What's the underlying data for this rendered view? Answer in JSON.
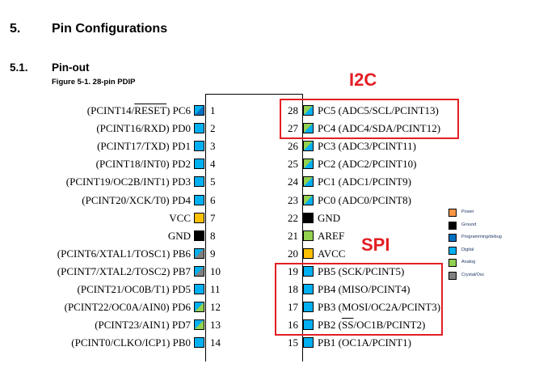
{
  "section": {
    "number": "5.",
    "title": "Pin Configurations"
  },
  "subsection": {
    "number": "5.1.",
    "title": "Pin-out"
  },
  "figure_caption": "Figure 5-1.  28-pin PDIP",
  "colors": {
    "power": "#ffc000",
    "power_legend": "#f79646",
    "ground": "#000000",
    "programming": "#0070c0",
    "digital": "#00b0f0",
    "analog": "#92d050",
    "crystal": "#7f7f7f",
    "highlight": "#e31e24"
  },
  "left_pins": [
    {
      "num": "1",
      "parts": [
        "(PCINT14/",
        "RESET",
        ") PC6"
      ],
      "type": [
        "digital",
        "programming"
      ]
    },
    {
      "num": "2",
      "parts": [
        "(PCINT16/RXD) PD0"
      ],
      "type": [
        "digital"
      ]
    },
    {
      "num": "3",
      "parts": [
        "(PCINT17/TXD) PD1"
      ],
      "type": [
        "digital"
      ]
    },
    {
      "num": "4",
      "parts": [
        "(PCINT18/INT0) PD2"
      ],
      "type": [
        "digital"
      ]
    },
    {
      "num": "5",
      "parts": [
        "(PCINT19/OC2B/INT1) PD3"
      ],
      "type": [
        "digital"
      ]
    },
    {
      "num": "6",
      "parts": [
        "(PCINT20/XCK/T0) PD4"
      ],
      "type": [
        "digital"
      ]
    },
    {
      "num": "7",
      "parts": [
        "VCC"
      ],
      "type": [
        "power"
      ]
    },
    {
      "num": "8",
      "parts": [
        "GND"
      ],
      "type": [
        "ground"
      ]
    },
    {
      "num": "9",
      "parts": [
        "(PCINT6/XTAL1/TOSC1) PB6"
      ],
      "type": [
        "digital",
        "crystal"
      ]
    },
    {
      "num": "10",
      "parts": [
        "(PCINT7/XTAL2/TOSC2) PB7"
      ],
      "type": [
        "digital",
        "crystal"
      ]
    },
    {
      "num": "11",
      "parts": [
        "(PCINT21/OC0B/T1) PD5"
      ],
      "type": [
        "digital"
      ]
    },
    {
      "num": "12",
      "parts": [
        "(PCINT22/OC0A/AIN0) PD6"
      ],
      "type": [
        "digital",
        "analog"
      ]
    },
    {
      "num": "13",
      "parts": [
        "(PCINT23/AIN1) PD7"
      ],
      "type": [
        "digital",
        "analog"
      ]
    },
    {
      "num": "14",
      "parts": [
        "(PCINT0/CLKO/ICP1) PB0"
      ],
      "type": [
        "digital"
      ]
    }
  ],
  "right_pins": [
    {
      "num": "28",
      "parts": [
        "PC5 (ADC5/SCL/PCINT13)"
      ],
      "type": [
        "analog",
        "digital"
      ]
    },
    {
      "num": "27",
      "parts": [
        "PC4 (ADC4/SDA/PCINT12)"
      ],
      "type": [
        "analog",
        "digital"
      ]
    },
    {
      "num": "26",
      "parts": [
        "PC3 (ADC3/PCINT11)"
      ],
      "type": [
        "analog",
        "digital"
      ]
    },
    {
      "num": "25",
      "parts": [
        "PC2 (ADC2/PCINT10)"
      ],
      "type": [
        "analog",
        "digital"
      ]
    },
    {
      "num": "24",
      "parts": [
        "PC1 (ADC1/PCINT9)"
      ],
      "type": [
        "analog",
        "digital"
      ]
    },
    {
      "num": "23",
      "parts": [
        "PC0 (ADC0/PCINT8)"
      ],
      "type": [
        "analog",
        "digital"
      ]
    },
    {
      "num": "22",
      "parts": [
        "GND"
      ],
      "type": [
        "ground"
      ]
    },
    {
      "num": "21",
      "parts": [
        "AREF"
      ],
      "type": [
        "analog"
      ]
    },
    {
      "num": "20",
      "parts": [
        "AVCC"
      ],
      "type": [
        "power"
      ]
    },
    {
      "num": "19",
      "parts": [
        "PB5 (SCK/PCINT5)"
      ],
      "type": [
        "digital"
      ]
    },
    {
      "num": "18",
      "parts": [
        "PB4 (MISO/PCINT4)"
      ],
      "type": [
        "digital"
      ]
    },
    {
      "num": "17",
      "parts": [
        "PB3 (MOSI/OC2A/PCINT3)"
      ],
      "type": [
        "digital"
      ]
    },
    {
      "num": "16",
      "parts": [
        "PB2 (",
        "SS",
        "/OC1B/PCINT2)"
      ],
      "type": [
        "digital"
      ]
    },
    {
      "num": "15",
      "parts": [
        "PB1 (OC1A/PCINT1)"
      ],
      "type": [
        "digital"
      ]
    }
  ],
  "annotations": {
    "i2c": "I2C",
    "spi": "SPI"
  },
  "legend": [
    {
      "label": "Power",
      "color": "power_legend"
    },
    {
      "label": "Ground",
      "color": "ground"
    },
    {
      "label": "Programming/debug",
      "color": "programming"
    },
    {
      "label": "Digital",
      "color": "digital"
    },
    {
      "label": "Analog",
      "color": "analog"
    },
    {
      "label": "Crystal/Osc",
      "color": "crystal"
    }
  ]
}
